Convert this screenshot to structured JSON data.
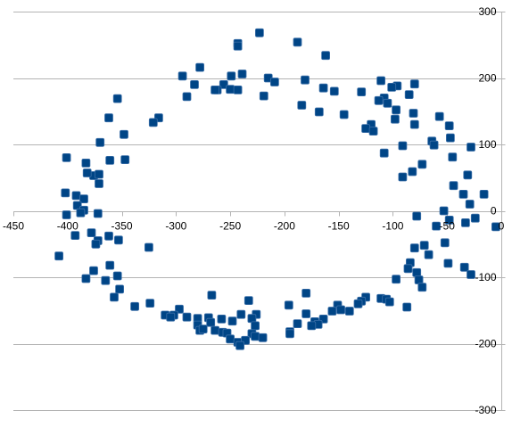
{
  "chart_data": {
    "type": "scatter",
    "title": "",
    "xlabel": "",
    "ylabel": "",
    "xlim": [
      -450,
      0
    ],
    "ylim": [
      -300,
      300
    ],
    "x_ticks": [
      -450,
      -400,
      -350,
      -300,
      -250,
      -200,
      -150,
      -100,
      -50,
      0
    ],
    "y_ticks": [
      300,
      200,
      100,
      0,
      -100,
      -200,
      -300
    ],
    "x_tick_labels": [
      "-450",
      "-400",
      "-350",
      "-300",
      "-250",
      "-200",
      "-150",
      "-100",
      "-50",
      "0"
    ],
    "y_tick_labels": [
      "300",
      "200",
      "100",
      "0",
      "-100",
      "-200",
      "-300"
    ],
    "grid": true,
    "legend": "none",
    "marker": "square",
    "marker_color": "#004586",
    "series": [
      {
        "points": [
          [
            -223,
            268
          ],
          [
            -188,
            254
          ],
          [
            -243,
            252
          ],
          [
            -243,
            248
          ],
          [
            -162,
            234
          ],
          [
            -278,
            216
          ],
          [
            -239,
            206
          ],
          [
            -294,
            203
          ],
          [
            -215,
            200
          ],
          [
            -249,
            203
          ],
          [
            -181,
            197
          ],
          [
            -209,
            194
          ],
          [
            -111,
            196
          ],
          [
            -256,
            190
          ],
          [
            -80,
            191
          ],
          [
            -96,
            188
          ],
          [
            -283,
            190
          ],
          [
            -101,
            186
          ],
          [
            -262,
            182
          ],
          [
            -250,
            183
          ],
          [
            -264,
            182
          ],
          [
            -243,
            182
          ],
          [
            -164,
            185
          ],
          [
            -129,
            179
          ],
          [
            -154,
            180
          ],
          [
            -290,
            172
          ],
          [
            -219,
            173
          ],
          [
            -108,
            170
          ],
          [
            -85,
            175
          ],
          [
            -354,
            169
          ],
          [
            -113,
            166
          ],
          [
            -105,
            162
          ],
          [
            -184,
            159
          ],
          [
            -97,
            152
          ],
          [
            -168,
            149
          ],
          [
            -145,
            145
          ],
          [
            -81,
            147
          ],
          [
            -316,
            140
          ],
          [
            -362,
            140
          ],
          [
            -98,
            138
          ],
          [
            -80,
            130
          ],
          [
            -321,
            133
          ],
          [
            -120,
            130
          ],
          [
            -57,
            142
          ],
          [
            -125,
            124
          ],
          [
            -118,
            120
          ],
          [
            -48,
            128
          ],
          [
            -348,
            115
          ],
          [
            -47,
            110
          ],
          [
            -91,
            98
          ],
          [
            -370,
            103
          ],
          [
            -64,
            105
          ],
          [
            -62,
            99
          ],
          [
            -28,
            96
          ],
          [
            -108,
            87
          ],
          [
            -45,
            81
          ],
          [
            -401,
            80
          ],
          [
            -361,
            76
          ],
          [
            -347,
            77
          ],
          [
            -383,
            72
          ],
          [
            -73,
            70
          ],
          [
            -82,
            59
          ],
          [
            -376,
            53
          ],
          [
            -371,
            55
          ],
          [
            -382,
            57
          ],
          [
            -91,
            51
          ],
          [
            -31,
            54
          ],
          [
            -371,
            41
          ],
          [
            -44,
            38
          ],
          [
            -35,
            25
          ],
          [
            -402,
            27
          ],
          [
            -392,
            23
          ],
          [
            -16,
            25
          ],
          [
            -385,
            18
          ],
          [
            -29,
            10
          ],
          [
            -391,
            8
          ],
          [
            -385,
            1
          ],
          [
            -372,
            -4
          ],
          [
            -388,
            -3
          ],
          [
            -401,
            -6
          ],
          [
            -53,
            0
          ],
          [
            -78,
            -8
          ],
          [
            -48,
            -14
          ],
          [
            -24,
            -11
          ],
          [
            -60,
            -23
          ],
          [
            -33,
            -18
          ],
          [
            -5,
            -24
          ],
          [
            -378,
            -33
          ],
          [
            -393,
            -37
          ],
          [
            -362,
            -38
          ],
          [
            -372,
            -45
          ],
          [
            -353,
            -44
          ],
          [
            -374,
            -50
          ],
          [
            -52,
            -48
          ],
          [
            -325,
            -55
          ],
          [
            -80,
            -56
          ],
          [
            -71,
            -52
          ],
          [
            -67,
            -66
          ],
          [
            -408,
            -68
          ],
          [
            -376,
            -90
          ],
          [
            -34,
            -85
          ],
          [
            -361,
            -82
          ],
          [
            -49,
            -79
          ],
          [
            -84,
            -78
          ],
          [
            -86,
            -87
          ],
          [
            -78,
            -93
          ],
          [
            -28,
            -96
          ],
          [
            -354,
            -98
          ],
          [
            -365,
            -105
          ],
          [
            -97,
            -103
          ],
          [
            -76,
            -104
          ],
          [
            -73,
            -115
          ],
          [
            -352,
            -118
          ],
          [
            -383,
            -102
          ],
          [
            -267,
            -127
          ],
          [
            -357,
            -130
          ],
          [
            -180,
            -124
          ],
          [
            -125,
            -130
          ],
          [
            -129,
            -136
          ],
          [
            -233,
            -135
          ],
          [
            -111,
            -132
          ],
          [
            -106,
            -133
          ],
          [
            -196,
            -142
          ],
          [
            -132,
            -140
          ],
          [
            -324,
            -139
          ],
          [
            -338,
            -144
          ],
          [
            -103,
            -137
          ],
          [
            -87,
            -145
          ],
          [
            -151,
            -142
          ],
          [
            -148,
            -149
          ],
          [
            -140,
            -151
          ],
          [
            -297,
            -148
          ],
          [
            -156,
            -151
          ],
          [
            -180,
            -155
          ],
          [
            -302,
            -157
          ],
          [
            -310,
            -157
          ],
          [
            -305,
            -160
          ],
          [
            -240,
            -156
          ],
          [
            -290,
            -160
          ],
          [
            -226,
            -156
          ],
          [
            -270,
            -161
          ],
          [
            -258,
            -163
          ],
          [
            -280,
            -162
          ],
          [
            -268,
            -168
          ],
          [
            -248,
            -166
          ],
          [
            -164,
            -163
          ],
          [
            -172,
            -167
          ],
          [
            -280,
            -172
          ],
          [
            -188,
            -170
          ],
          [
            -169,
            -171
          ],
          [
            -230,
            -162
          ],
          [
            -227,
            -173
          ],
          [
            -175,
            -173
          ],
          [
            -278,
            -180
          ],
          [
            -264,
            -180
          ],
          [
            -230,
            -185
          ],
          [
            -257,
            -183
          ],
          [
            -275,
            -178
          ],
          [
            -253,
            -184
          ],
          [
            -195,
            -182
          ],
          [
            -195,
            -185
          ],
          [
            -227,
            -189
          ],
          [
            -250,
            -193
          ],
          [
            -220,
            -191
          ],
          [
            -243,
            -198
          ],
          [
            -236,
            -195
          ],
          [
            -241,
            -203
          ]
        ]
      }
    ]
  }
}
